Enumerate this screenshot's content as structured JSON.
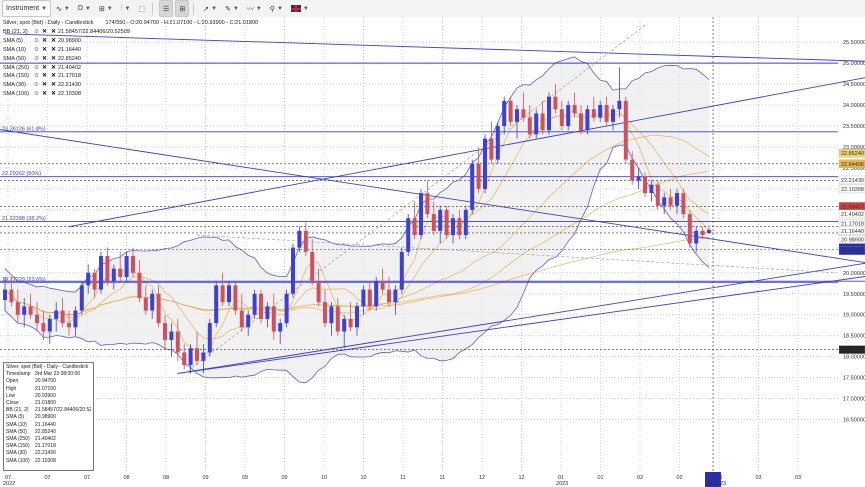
{
  "toolbar": {
    "instrument": "Instrument",
    "timeframe": "D",
    "items": [
      "∿",
      "⊞",
      "⫶",
      "⬚",
      "⊟",
      "✎",
      "〰",
      "⚲",
      "🇬🇧"
    ]
  },
  "header": {
    "title": "Silver, spot (Bid) - Daily - Candlestick",
    "ohlc": "174/550 - O:20.94700 - H:21.07100 - L:20.93900 - C:21.01800"
  },
  "indicators": [
    {
      "label": "BB (21, 2)",
      "value": "21.58457/22.84406/20.52509"
    },
    {
      "label": "SMA (5)",
      "value": "20.98900"
    },
    {
      "label": "SMA (10)",
      "value": "21.16440"
    },
    {
      "label": "SMA (50)",
      "value": "22.85240"
    },
    {
      "label": "SMA (250)",
      "value": "21.40402"
    },
    {
      "label": "SMA (150)",
      "value": "21.17018"
    },
    {
      "label": "SMA (30)",
      "value": "22.21430"
    },
    {
      "label": "SMA (100)",
      "value": "22.10308"
    }
  ],
  "tooltip": {
    "title": "Silver, spot (Bid) - Daily - Candlestick",
    "rows": [
      [
        "Timestamp",
        "3rd Mar 23 08:00:00"
      ],
      [
        "Open",
        "20.94700"
      ],
      [
        "High",
        "21.07100"
      ],
      [
        "Low",
        "20.93900"
      ],
      [
        "Close",
        "21.01800"
      ],
      [
        "BB (21, 2)",
        "21.58457/22.84406/20.52509"
      ],
      [
        "SMA (5)",
        "20.98900"
      ],
      [
        "SMA (10)",
        "21.16440"
      ],
      [
        "SMA (50)",
        "22.85240"
      ],
      [
        "SMA (250)",
        "21.40402"
      ],
      [
        "SMA (150)",
        "21.17018"
      ],
      [
        "SMA (30)",
        "22.21430"
      ],
      [
        "SMA (100)",
        "22.10308"
      ]
    ]
  },
  "fib_labels": [
    {
      "text": "23.36126 (61.8%)",
      "y": 23.36126
    },
    {
      "text": "22.29262 (50%)",
      "y": 22.29262
    },
    {
      "text": "21.22398 (38.2%)",
      "y": 21.22398
    },
    {
      "text": "19.77229 (23.6%)",
      "y": 19.77229
    }
  ],
  "colors": {
    "up": "#3d3fd6",
    "down": "#d15060",
    "line": "#3a3fd0",
    "sma": "#e8a840",
    "band_fill": "#e6e6e6",
    "band_line": "#6060d0"
  },
  "chart_data": {
    "type": "candlestick",
    "title": "Silver, spot (Bid) - Daily - Candlestick",
    "ylim": [
      15.25,
      26.1
    ],
    "yticks": [
      "25.50000",
      "25.00000",
      "24.50000",
      "24.00000",
      "23.50000",
      "23.00000",
      "22.50000",
      "22.00000",
      "21.50000",
      "21.00000",
      "20.50000",
      "20.00000",
      "19.50000",
      "19.00000",
      "18.50000",
      "18.00000",
      "17.50000",
      "17.00000",
      "16.50000"
    ],
    "xticks": [
      {
        "label": "07",
        "sub": "2022"
      },
      {
        "label": "07",
        "sub": ""
      },
      {
        "label": "07",
        "sub": ""
      },
      {
        "label": "08",
        "sub": ""
      },
      {
        "label": "08",
        "sub": ""
      },
      {
        "label": "09",
        "sub": ""
      },
      {
        "label": "09",
        "sub": ""
      },
      {
        "label": "09",
        "sub": ""
      },
      {
        "label": "10",
        "sub": ""
      },
      {
        "label": "10",
        "sub": ""
      },
      {
        "label": "11",
        "sub": ""
      },
      {
        "label": "11",
        "sub": ""
      },
      {
        "label": "12",
        "sub": ""
      },
      {
        "label": "12",
        "sub": ""
      },
      {
        "label": "01",
        "sub": "2023"
      },
      {
        "label": "01",
        "sub": ""
      },
      {
        "label": "02",
        "sub": ""
      },
      {
        "label": "02",
        "sub": ""
      },
      {
        "label": "03",
        "sub": "2023"
      },
      {
        "label": "03",
        "sub": ""
      },
      {
        "label": "03",
        "sub": ""
      }
    ],
    "price_labels": [
      {
        "text": "22.85240",
        "y": 22.8524,
        "bg": "#f2d36b",
        "fg": "#000"
      },
      {
        "text": "22.84406",
        "y": 22.6,
        "bg": "#e8b84a",
        "fg": "#000"
      },
      {
        "text": "22.21430",
        "y": 22.2143,
        "bg": "#ffffff",
        "fg": "#000"
      },
      {
        "text": "22.10308",
        "y": 22.0,
        "bg": "#ffffff",
        "fg": "#000"
      },
      {
        "text": "21.58457",
        "y": 21.58457,
        "bg": "#d34040",
        "fg": "#fff"
      },
      {
        "text": "21.40402",
        "y": 21.40402,
        "bg": "#ffffff",
        "fg": "#000"
      },
      {
        "text": "21.17018",
        "y": 21.17018,
        "bg": "#ffffff",
        "fg": "#000"
      },
      {
        "text": "21.16440",
        "y": 21.0,
        "bg": "#ffffff",
        "fg": "#000"
      },
      {
        "text": "20.98900",
        "y": 20.8,
        "bg": "#ffffff",
        "fg": "#000"
      },
      {
        "text": "21.01800",
        "y": 20.6,
        "bg": "#2a2fb0",
        "fg": "#fff"
      },
      {
        "text": "20.52509",
        "y": 20.52509,
        "bg": "#2a2fb0",
        "fg": "#fff"
      },
      {
        "text": "18.16883",
        "y": 18.16883,
        "bg": "#222222",
        "fg": "#fff"
      }
    ],
    "horizontal_levels": [
      25.0,
      23.36126,
      22.6,
      22.29262,
      22.2,
      21.58457,
      21.22398,
      21.1,
      20.95,
      20.55,
      19.77229,
      18.16883
    ],
    "candles": [
      [
        19.35,
        19.9,
        19.1,
        19.6
      ],
      [
        19.6,
        19.9,
        19.2,
        19.3
      ],
      [
        19.3,
        19.6,
        18.8,
        19.0
      ],
      [
        19.0,
        19.4,
        18.7,
        19.2
      ],
      [
        19.2,
        19.5,
        18.9,
        19.0
      ],
      [
        19.0,
        19.3,
        18.6,
        18.8
      ],
      [
        18.8,
        19.1,
        18.4,
        18.6
      ],
      [
        18.6,
        19.0,
        18.3,
        18.9
      ],
      [
        18.9,
        19.3,
        18.6,
        19.1
      ],
      [
        19.1,
        19.4,
        18.7,
        18.8
      ],
      [
        18.8,
        19.1,
        18.5,
        18.7
      ],
      [
        18.7,
        19.2,
        18.5,
        19.1
      ],
      [
        19.1,
        19.8,
        19.0,
        19.7
      ],
      [
        19.7,
        20.2,
        19.5,
        20.0
      ],
      [
        20.0,
        20.1,
        19.4,
        19.6
      ],
      [
        19.6,
        20.5,
        19.5,
        20.4
      ],
      [
        20.4,
        20.6,
        19.7,
        19.8
      ],
      [
        19.8,
        20.2,
        19.6,
        20.1
      ],
      [
        20.1,
        20.5,
        19.8,
        19.9
      ],
      [
        19.9,
        20.5,
        19.8,
        20.4
      ],
      [
        20.4,
        20.6,
        19.9,
        20.0
      ],
      [
        20.0,
        20.3,
        19.3,
        19.4
      ],
      [
        19.4,
        19.7,
        19.0,
        19.1
      ],
      [
        19.1,
        19.6,
        18.9,
        19.5
      ],
      [
        19.5,
        19.7,
        18.7,
        18.8
      ],
      [
        18.8,
        19.0,
        18.2,
        18.4
      ],
      [
        18.4,
        18.8,
        18.0,
        18.6
      ],
      [
        18.6,
        18.9,
        17.9,
        18.1
      ],
      [
        18.1,
        18.3,
        17.7,
        17.8
      ],
      [
        17.8,
        18.3,
        17.6,
        18.2
      ],
      [
        18.2,
        18.6,
        17.8,
        17.9
      ],
      [
        17.9,
        18.3,
        17.6,
        18.1
      ],
      [
        18.1,
        18.9,
        18.0,
        18.8
      ],
      [
        18.8,
        19.8,
        18.7,
        19.7
      ],
      [
        19.7,
        20.0,
        19.2,
        19.3
      ],
      [
        19.3,
        19.8,
        19.2,
        19.7
      ],
      [
        19.7,
        19.8,
        19.0,
        19.1
      ],
      [
        19.1,
        19.5,
        18.6,
        18.7
      ],
      [
        18.7,
        19.1,
        18.5,
        19.0
      ],
      [
        19.0,
        19.6,
        18.9,
        19.5
      ],
      [
        19.5,
        19.6,
        18.8,
        18.9
      ],
      [
        18.9,
        19.3,
        18.7,
        19.2
      ],
      [
        19.2,
        19.5,
        18.4,
        18.6
      ],
      [
        18.6,
        18.9,
        18.3,
        18.8
      ],
      [
        18.8,
        19.6,
        18.7,
        19.5
      ],
      [
        19.5,
        20.7,
        19.4,
        20.6
      ],
      [
        20.6,
        21.1,
        20.5,
        21.0
      ],
      [
        21.0,
        21.2,
        20.4,
        20.5
      ],
      [
        20.5,
        20.8,
        19.7,
        19.8
      ],
      [
        19.8,
        20.1,
        19.2,
        19.3
      ],
      [
        19.3,
        19.6,
        18.7,
        18.8
      ],
      [
        18.8,
        19.3,
        18.5,
        19.2
      ],
      [
        19.2,
        19.4,
        18.5,
        18.6
      ],
      [
        18.6,
        19.0,
        18.2,
        18.9
      ],
      [
        18.9,
        19.3,
        18.6,
        18.7
      ],
      [
        18.7,
        19.3,
        18.5,
        19.2
      ],
      [
        19.2,
        19.7,
        19.0,
        19.6
      ],
      [
        19.6,
        19.8,
        19.1,
        19.2
      ],
      [
        19.2,
        19.9,
        19.1,
        19.8
      ],
      [
        19.8,
        20.1,
        19.5,
        19.6
      ],
      [
        19.6,
        19.9,
        19.2,
        19.3
      ],
      [
        19.3,
        19.7,
        19.0,
        19.6
      ],
      [
        19.6,
        20.6,
        19.5,
        20.5
      ],
      [
        20.5,
        21.4,
        20.4,
        21.3
      ],
      [
        21.3,
        21.7,
        20.8,
        20.9
      ],
      [
        20.9,
        22.0,
        20.8,
        21.9
      ],
      [
        21.9,
        22.2,
        21.3,
        21.4
      ],
      [
        21.4,
        21.7,
        20.9,
        21.0
      ],
      [
        21.0,
        21.6,
        20.7,
        21.5
      ],
      [
        21.5,
        21.6,
        20.8,
        20.9
      ],
      [
        20.9,
        21.4,
        20.7,
        21.3
      ],
      [
        21.3,
        21.5,
        20.8,
        20.9
      ],
      [
        20.9,
        21.6,
        20.8,
        21.5
      ],
      [
        21.5,
        22.7,
        21.4,
        22.6
      ],
      [
        22.6,
        23.0,
        21.9,
        22.0
      ],
      [
        22.0,
        23.3,
        21.9,
        23.2
      ],
      [
        23.2,
        23.6,
        22.6,
        22.7
      ],
      [
        22.7,
        23.6,
        22.6,
        23.5
      ],
      [
        23.5,
        24.2,
        23.3,
        24.1
      ],
      [
        24.1,
        24.2,
        23.5,
        23.6
      ],
      [
        23.6,
        24.0,
        23.2,
        23.9
      ],
      [
        23.9,
        24.3,
        23.6,
        23.7
      ],
      [
        23.7,
        24.0,
        23.2,
        23.3
      ],
      [
        23.3,
        23.9,
        23.2,
        23.8
      ],
      [
        23.8,
        24.1,
        23.3,
        23.4
      ],
      [
        23.4,
        24.3,
        23.3,
        24.2
      ],
      [
        24.2,
        24.5,
        23.8,
        23.9
      ],
      [
        23.9,
        24.1,
        23.4,
        23.5
      ],
      [
        23.5,
        24.1,
        23.4,
        24.0
      ],
      [
        24.0,
        24.3,
        23.7,
        23.8
      ],
      [
        23.8,
        24.0,
        23.3,
        23.4
      ],
      [
        23.4,
        24.0,
        23.3,
        23.9
      ],
      [
        23.9,
        24.2,
        23.6,
        23.7
      ],
      [
        23.7,
        24.1,
        23.6,
        24.0
      ],
      [
        24.0,
        24.2,
        23.5,
        23.6
      ],
      [
        23.6,
        24.0,
        23.4,
        23.9
      ],
      [
        23.9,
        24.9,
        23.7,
        24.1
      ],
      [
        24.1,
        24.2,
        22.6,
        22.7
      ],
      [
        22.7,
        22.9,
        22.1,
        22.2
      ],
      [
        22.2,
        22.5,
        22.0,
        22.3
      ],
      [
        22.3,
        22.4,
        21.8,
        21.9
      ],
      [
        21.9,
        22.2,
        21.7,
        22.1
      ],
      [
        22.1,
        22.2,
        21.5,
        21.6
      ],
      [
        21.6,
        21.9,
        21.4,
        21.8
      ],
      [
        21.8,
        22.0,
        21.5,
        21.6
      ],
      [
        21.6,
        22.0,
        21.4,
        21.9
      ],
      [
        21.9,
        22.0,
        21.3,
        21.4
      ],
      [
        21.4,
        21.5,
        20.6,
        20.7
      ],
      [
        20.7,
        21.1,
        20.5,
        21.0
      ],
      [
        21.0,
        21.1,
        20.8,
        20.9
      ],
      [
        20.947,
        21.071,
        20.939,
        21.018
      ]
    ],
    "series": [
      {
        "name": "BB (21, 2)",
        "values": []
      },
      {
        "name": "SMA (5)",
        "values": []
      },
      {
        "name": "SMA (10)",
        "values": []
      },
      {
        "name": "SMA (50)",
        "values": []
      },
      {
        "name": "SMA (250)",
        "values": []
      },
      {
        "name": "SMA (150)",
        "values": []
      },
      {
        "name": "SMA (30)",
        "values": []
      },
      {
        "name": "SMA (100)",
        "values": []
      }
    ],
    "trendlines": [
      {
        "from": [
          0,
          25.7
        ],
        "to": [
          164,
          24.9
        ]
      },
      {
        "from": [
          -30,
          24.1
        ],
        "to": [
          164,
          19.55
        ]
      },
      {
        "from": [
          10,
          21.1
        ],
        "to": [
          164,
          25.5
        ]
      },
      {
        "from": [
          27,
          17.6
        ],
        "to": [
          164,
          20.55
        ]
      },
      {
        "from": [
          27,
          17.6
        ],
        "to": [
          164,
          20.95
        ]
      },
      {
        "from": [
          -2,
          19.8
        ],
        "to": [
          164,
          19.8
        ]
      }
    ]
  }
}
